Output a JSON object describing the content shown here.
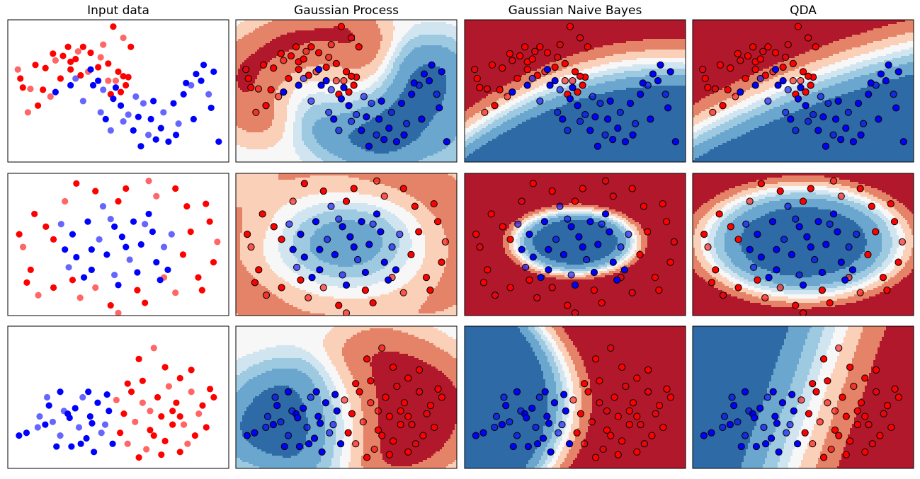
{
  "chart_data": {
    "type": "scatter",
    "columns": [
      "Input data",
      "Gaussian Process",
      "Gaussian Naive Bayes",
      "QDA"
    ],
    "colors": {
      "class0": "#ff0000",
      "class1": "#0000ff",
      "red_levels": [
        "#fbd0b9",
        "#e58368",
        "#b2182b"
      ],
      "blue_levels": [
        "#d1e5f0",
        "#9dcae1",
        "#6aa6cd",
        "#2e6ba6"
      ],
      "neutral": "#f7f7f7"
    },
    "datasets": [
      {
        "name": "moons",
        "xlim": [
          -1.8,
          2.6
        ],
        "ylim": [
          -1.5,
          1.65
        ],
        "class0_points": [
          [
            -1.55,
            0.35
          ],
          [
            -1.5,
            0.15
          ],
          [
            -1.35,
            0.12
          ],
          [
            -1.1,
            0.1
          ],
          [
            -1.2,
            -0.25
          ],
          [
            -0.95,
            -0.05
          ],
          [
            -1.25,
            0.65
          ],
          [
            -1.05,
            0.58
          ],
          [
            -0.85,
            0.75
          ],
          [
            -0.7,
            0.85
          ],
          [
            -0.55,
            0.72
          ],
          [
            -0.4,
            0.95
          ],
          [
            -0.3,
            1.05
          ],
          [
            -0.15,
            0.92
          ],
          [
            0.05,
            0.82
          ],
          [
            0.2,
            0.68
          ],
          [
            0.4,
            0.5
          ],
          [
            0.35,
            0.3
          ],
          [
            0.55,
            0.2
          ],
          [
            0.3,
            1.5
          ],
          [
            0.5,
            1.25
          ],
          [
            -0.55,
            0.55
          ],
          [
            -0.75,
            0.35
          ],
          [
            -0.2,
            0.5
          ],
          [
            0.0,
            0.6
          ],
          [
            0.45,
            0.05
          ],
          [
            -1.4,
            -0.4
          ],
          [
            0.6,
            0.38
          ],
          [
            -0.9,
            0.9
          ],
          [
            0.1,
            1.1
          ],
          [
            -0.35,
            0.42
          ],
          [
            0.65,
            1.05
          ],
          [
            0.2,
            0.3
          ],
          [
            0.25,
            0.0
          ],
          [
            -0.6,
            1.05
          ],
          [
            -1.6,
            0.55
          ],
          [
            0.5,
            0.4
          ],
          [
            -0.45,
            0.78
          ]
        ],
        "class1_points": [
          [
            -0.15,
            0.55
          ],
          [
            0.0,
            0.3
          ],
          [
            0.1,
            0.1
          ],
          [
            0.3,
            -0.1
          ],
          [
            0.45,
            -0.25
          ],
          [
            0.6,
            -0.45
          ],
          [
            0.8,
            -0.5
          ],
          [
            1.05,
            -0.55
          ],
          [
            1.3,
            -0.4
          ],
          [
            1.5,
            -0.2
          ],
          [
            1.7,
            0.0
          ],
          [
            1.85,
            0.2
          ],
          [
            1.95,
            0.45
          ],
          [
            2.05,
            0.3
          ],
          [
            2.2,
            0.0
          ],
          [
            2.25,
            -0.3
          ],
          [
            2.3,
            0.5
          ],
          [
            0.9,
            -0.2
          ],
          [
            1.1,
            -0.15
          ],
          [
            0.7,
            -0.8
          ],
          [
            1.0,
            -0.9
          ],
          [
            1.4,
            -1.05
          ],
          [
            0.15,
            -0.55
          ],
          [
            -0.3,
            -0.15
          ],
          [
            -0.55,
            0.2
          ],
          [
            -0.85,
            0.05
          ],
          [
            1.6,
            -0.65
          ],
          [
            1.9,
            -0.55
          ],
          [
            0.35,
            0.15
          ],
          [
            0.5,
            -0.6
          ],
          [
            1.25,
            -0.75
          ],
          [
            2.4,
            -1.05
          ],
          [
            0.05,
            -0.4
          ],
          [
            1.75,
            0.25
          ],
          [
            -0.1,
            0.2
          ],
          [
            0.75,
            -0.05
          ],
          [
            1.55,
            -0.9
          ],
          [
            2.1,
            0.65
          ],
          [
            0.25,
            -0.8
          ],
          [
            1.15,
            -1.0
          ],
          [
            0.85,
            -1.15
          ],
          [
            -0.45,
            0.35
          ]
        ],
        "accuracy_labels": []
      },
      {
        "name": "circles",
        "xlim": [
          -1.45,
          1.45
        ],
        "ylim": [
          -1.3,
          1.5
        ],
        "class0_points": [
          [
            -1.3,
            0.3
          ],
          [
            -1.1,
            0.7
          ],
          [
            -0.7,
            0.95
          ],
          [
            -0.3,
            1.15
          ],
          [
            0.1,
            1.2
          ],
          [
            0.5,
            1.05
          ],
          [
            0.9,
            0.85
          ],
          [
            1.2,
            0.55
          ],
          [
            1.3,
            0.15
          ],
          [
            1.25,
            -0.25
          ],
          [
            1.05,
            -0.55
          ],
          [
            0.75,
            -0.85
          ],
          [
            0.35,
            -1.05
          ],
          [
            -0.1,
            -1.1
          ],
          [
            -0.5,
            -0.95
          ],
          [
            -0.85,
            -0.75
          ],
          [
            -1.15,
            -0.4
          ],
          [
            -1.25,
            0.05
          ],
          [
            -0.95,
            0.45
          ],
          [
            0.95,
            0.35
          ],
          [
            0.6,
            -0.55
          ],
          [
            -0.6,
            -0.6
          ],
          [
            0.0,
            0.95
          ],
          [
            0.4,
            1.35
          ],
          [
            -0.55,
            1.3
          ],
          [
            1.1,
            -0.8
          ],
          [
            -1.05,
            -0.9
          ],
          [
            0.75,
            1.2
          ],
          [
            0.25,
            -0.8
          ],
          [
            -0.3,
            -0.75
          ],
          [
            -0.85,
            0.2
          ],
          [
            0.85,
            -0.1
          ],
          [
            0.0,
            -1.25
          ],
          [
            -1.2,
            -0.65
          ],
          [
            1.15,
            0.9
          ]
        ],
        "class1_points": [
          [
            -0.6,
            0.3
          ],
          [
            -0.4,
            0.55
          ],
          [
            -0.1,
            0.6
          ],
          [
            0.2,
            0.55
          ],
          [
            0.45,
            0.35
          ],
          [
            0.6,
            0.05
          ],
          [
            0.5,
            -0.25
          ],
          [
            0.25,
            -0.45
          ],
          [
            -0.05,
            -0.5
          ],
          [
            -0.35,
            -0.4
          ],
          [
            -0.55,
            -0.15
          ],
          [
            -0.25,
            0.2
          ],
          [
            0.05,
            0.25
          ],
          [
            0.3,
            0.1
          ],
          [
            0.15,
            -0.2
          ],
          [
            -0.15,
            -0.1
          ],
          [
            -0.7,
            0.0
          ],
          [
            0.7,
            0.3
          ],
          [
            -0.45,
            -0.55
          ],
          [
            0.4,
            0.7
          ],
          [
            -0.2,
            0.85
          ],
          [
            0.0,
            -0.7
          ],
          [
            0.65,
            -0.4
          ],
          [
            -0.75,
            0.5
          ],
          [
            0.1,
            0.05
          ],
          [
            -0.35,
            0.0
          ],
          [
            0.35,
            0.5
          ],
          [
            -0.05,
            0.45
          ],
          [
            0.55,
            -0.6
          ],
          [
            -0.65,
            -0.35
          ]
        ],
        "accuracy_labels": []
      },
      {
        "name": "linear",
        "xlim": [
          -2.6,
          3.3
        ],
        "ylim": [
          -1.8,
          3.4
        ],
        "class0_points": [
          [
            0.6,
            1.3
          ],
          [
            0.9,
            2.2
          ],
          [
            1.3,
            2.6
          ],
          [
            1.6,
            1.9
          ],
          [
            2.0,
            1.5
          ],
          [
            2.3,
            1.0
          ],
          [
            2.6,
            0.5
          ],
          [
            2.8,
            1.1
          ],
          [
            1.0,
            0.6
          ],
          [
            1.4,
            0.8
          ],
          [
            1.8,
            0.3
          ],
          [
            2.1,
            -0.2
          ],
          [
            2.4,
            -0.6
          ],
          [
            1.2,
            -0.4
          ],
          [
            0.8,
            -0.1
          ],
          [
            1.6,
            -0.8
          ],
          [
            2.0,
            -1.2
          ],
          [
            1.1,
            -1.1
          ],
          [
            0.5,
            0.2
          ],
          [
            1.9,
            0.6
          ],
          [
            2.5,
            0.2
          ],
          [
            0.7,
            1.0
          ],
          [
            1.5,
            0.1
          ],
          [
            2.2,
            -0.9
          ],
          [
            1.3,
            -0.6
          ],
          [
            0.4,
            -0.5
          ],
          [
            1.7,
            1.2
          ],
          [
            2.7,
            -0.3
          ],
          [
            1.0,
            1.4
          ],
          [
            0.3,
            0.7
          ],
          [
            1.8,
            -0.2
          ],
          [
            2.9,
            0.8
          ],
          [
            0.6,
            -0.9
          ],
          [
            1.5,
            -1.3
          ],
          [
            2.3,
            1.8
          ],
          [
            1.2,
            0.3
          ],
          [
            0.9,
            -1.4
          ],
          [
            2.0,
            0.1
          ]
        ],
        "class1_points": [
          [
            -2.3,
            -0.6
          ],
          [
            -2.1,
            -0.5
          ],
          [
            -1.8,
            -0.3
          ],
          [
            -1.5,
            0.5
          ],
          [
            -1.2,
            1.0
          ],
          [
            -1.4,
            -0.1
          ],
          [
            -1.0,
            0.2
          ],
          [
            -0.8,
            0.4
          ],
          [
            -0.6,
            0.8
          ],
          [
            -0.4,
            0.1
          ],
          [
            -0.2,
            0.6
          ],
          [
            0.0,
            -0.2
          ],
          [
            -0.5,
            -0.7
          ],
          [
            -0.9,
            -1.0
          ],
          [
            -1.2,
            -0.6
          ],
          [
            -0.3,
            -1.2
          ],
          [
            0.2,
            -0.9
          ],
          [
            -0.7,
            -0.3
          ],
          [
            -1.6,
            -0.2
          ],
          [
            0.1,
            0.3
          ],
          [
            -1.1,
            0.3
          ],
          [
            -0.45,
            1.0
          ],
          [
            -1.3,
            -1.0
          ],
          [
            -0.1,
            -0.5
          ],
          [
            -0.95,
            0.05
          ],
          [
            -0.65,
            -0.9
          ],
          [
            -1.55,
            0.8
          ],
          [
            0.05,
            0.9
          ],
          [
            -0.35,
            -0.15
          ],
          [
            -1.75,
            0.1
          ]
        ],
        "accuracy_labels": []
      }
    ]
  }
}
